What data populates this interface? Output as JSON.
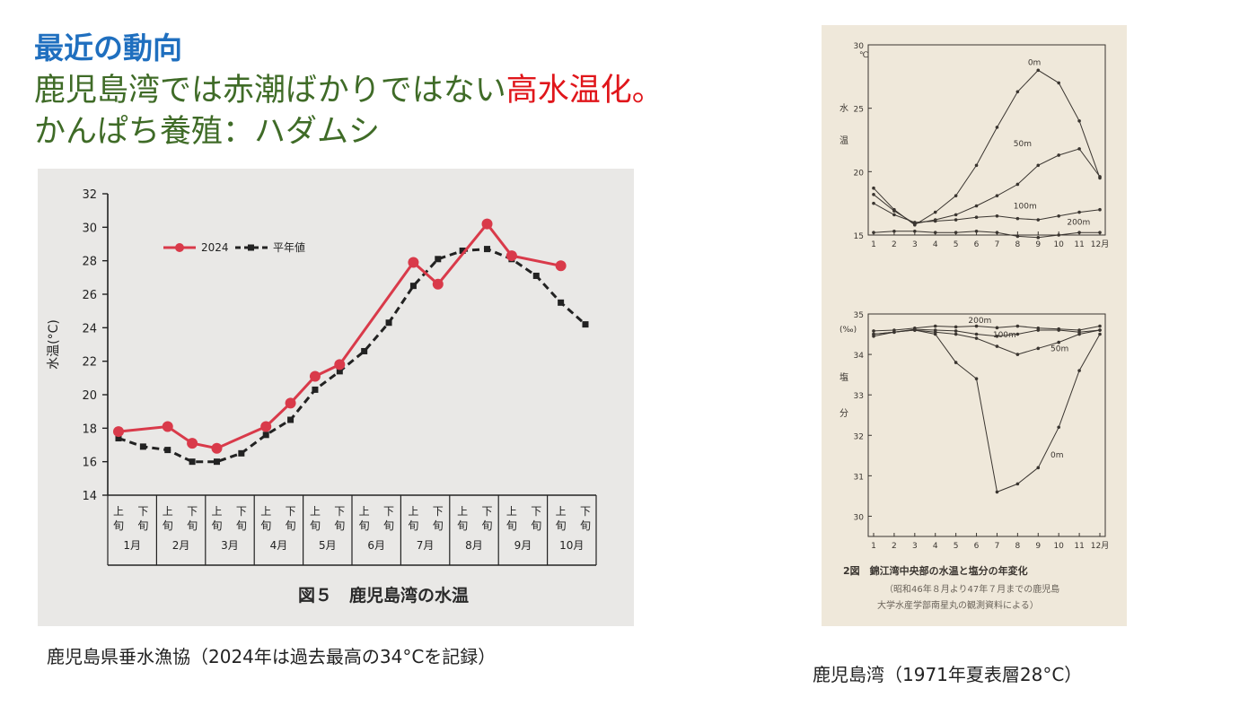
{
  "slide": {
    "heading": "最近の動向",
    "subtitle_line1_prefix": "鹿児島湾では赤潮ばかりではない",
    "subtitle_line1_highlight": "高水温化。",
    "subtitle_line2": "かんぱち養殖：ハダムシ",
    "caption_left": "鹿児島県垂水漁協（2024年は過去最高の34°Cを記録）",
    "caption_right": "鹿児島湾（1971年夏表層28°C）"
  },
  "colors": {
    "heading": "#1f6fbf",
    "subtitle": "#3f6b27",
    "highlight": "#e0161b",
    "series_2024": "#d93a4a",
    "series_normal": "#222222"
  },
  "chart_data": [
    {
      "type": "line",
      "title": "図５　鹿児島湾の水温",
      "ylabel": "水温(°C)",
      "ylim": [
        14,
        32
      ],
      "yticks": [
        14,
        16,
        18,
        20,
        22,
        24,
        26,
        28,
        30,
        32
      ],
      "x": [
        "1月上旬",
        "1月下旬",
        "2月上旬",
        "2月下旬",
        "3月上旬",
        "3月下旬",
        "4月上旬",
        "4月下旬",
        "5月上旬",
        "5月下旬",
        "6月上旬",
        "6月下旬",
        "7月上旬",
        "7月下旬",
        "8月上旬",
        "8月下旬",
        "9月上旬",
        "9月下旬",
        "10月上旬",
        "10月下旬"
      ],
      "sub_labels": [
        "上旬",
        "下旬"
      ],
      "months": [
        "1月",
        "2月",
        "3月",
        "4月",
        "5月",
        "6月",
        "7月",
        "8月",
        "9月",
        "10月"
      ],
      "legend_position": "top-left",
      "series": [
        {
          "name": "2024",
          "values": [
            17.8,
            null,
            18.1,
            17.1,
            16.8,
            null,
            18.1,
            19.5,
            21.1,
            21.8,
            null,
            null,
            27.9,
            26.6,
            null,
            30.2,
            28.3,
            null,
            27.7,
            null
          ]
        },
        {
          "name": "平年値",
          "values": [
            17.4,
            16.9,
            16.7,
            16.0,
            16.0,
            16.5,
            17.6,
            18.5,
            20.3,
            21.4,
            22.6,
            24.3,
            26.5,
            28.1,
            28.6,
            28.7,
            28.1,
            27.1,
            25.5,
            24.2
          ]
        }
      ]
    },
    {
      "type": "line",
      "ylabel": "水 温 ℃",
      "ylim": [
        15,
        30
      ],
      "yticks": [
        15,
        20,
        25,
        30
      ],
      "x": [
        "1",
        "2",
        "3",
        "4",
        "5",
        "6",
        "7",
        "8",
        "9",
        "10",
        "11",
        "12月"
      ],
      "series": [
        {
          "name": "0m",
          "values": [
            18.7,
            17.0,
            15.8,
            16.8,
            18.1,
            20.5,
            23.5,
            26.3,
            28.0,
            27.0,
            24.0,
            19.5
          ]
        },
        {
          "name": "50m",
          "values": [
            18.2,
            16.9,
            15.9,
            16.2,
            16.6,
            17.3,
            18.1,
            19.0,
            20.5,
            21.3,
            21.8,
            19.6
          ]
        },
        {
          "name": "100m",
          "values": [
            17.5,
            16.6,
            16.0,
            16.1,
            16.2,
            16.4,
            16.5,
            16.3,
            16.2,
            16.5,
            16.8,
            17.0
          ]
        },
        {
          "name": "200m",
          "values": [
            15.2,
            15.3,
            15.3,
            15.2,
            15.2,
            15.3,
            15.2,
            14.9,
            14.8,
            15.0,
            15.2,
            15.2
          ]
        }
      ]
    },
    {
      "type": "line",
      "ylabel": "塩 分 (‰)",
      "ylim": [
        29.5,
        35
      ],
      "yticks": [
        30,
        31,
        32,
        33,
        34,
        35
      ],
      "x": [
        "1",
        "2",
        "3",
        "4",
        "5",
        "6",
        "7",
        "8",
        "9",
        "10",
        "11",
        "12月"
      ],
      "series": [
        {
          "name": "200m",
          "values": [
            34.58,
            34.6,
            34.65,
            34.7,
            34.68,
            34.7,
            34.66,
            34.7,
            34.65,
            34.63,
            34.6,
            34.7
          ]
        },
        {
          "name": "100m",
          "values": [
            34.5,
            34.55,
            34.62,
            34.6,
            34.58,
            34.5,
            34.45,
            34.5,
            34.6,
            34.6,
            34.55,
            34.6
          ]
        },
        {
          "name": "50m",
          "values": [
            34.45,
            34.55,
            34.6,
            34.55,
            34.5,
            34.4,
            34.2,
            34.0,
            34.15,
            34.3,
            34.5,
            34.6
          ]
        },
        {
          "name": "0m",
          "values": [
            34.5,
            34.55,
            34.6,
            34.5,
            33.8,
            33.4,
            30.6,
            30.8,
            31.2,
            32.2,
            33.6,
            34.5
          ]
        }
      ],
      "title": "2図　錦江湾中央部の水温と塩分の年変化",
      "note_line1": "（昭和46年８月より47年７月までの鹿児島",
      "note_line2": "大学水産学部南星丸の観測資料による）"
    }
  ]
}
